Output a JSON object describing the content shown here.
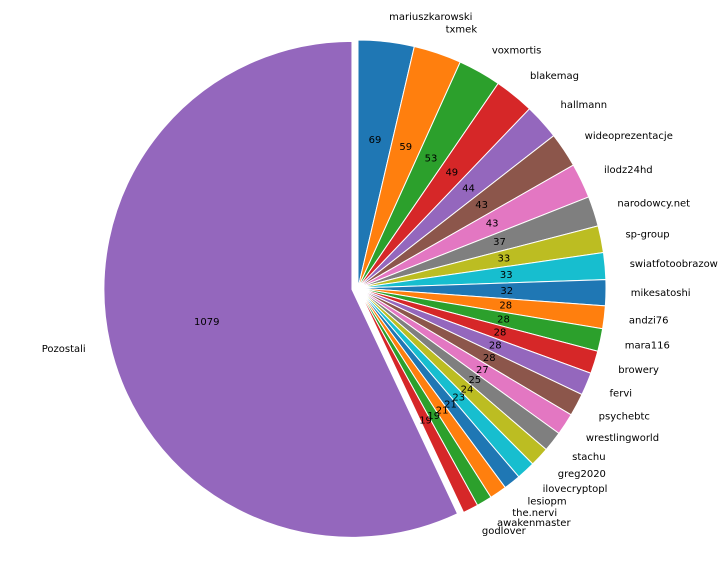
{
  "chart_data": {
    "type": "pie",
    "start_angle_deg": 90,
    "direction": "clockwise",
    "explode": 0.025,
    "title": "",
    "labels": [
      "mariuszkarowski",
      "txmek",
      "voxmortis",
      "blakemag",
      "hallmann",
      "wideoprezentacje",
      "ilodz24hd",
      "narodowcy.net",
      "sp-group",
      "swiatfotoobrazow",
      "mikesatoshi",
      "andzi76",
      "mara116",
      "browery",
      "fervi",
      "psychebtc",
      "wrestlingworld",
      "stachu",
      "greg2020",
      "ilovecryptopl",
      "lesiopm",
      "the.nervi",
      "awakenmaster",
      "godlover",
      "Pozostali"
    ],
    "values": [
      69,
      59,
      53,
      49,
      44,
      43,
      43,
      37,
      33,
      33,
      32,
      28,
      28,
      28,
      28,
      28,
      27,
      25,
      24,
      23,
      21,
      21,
      19,
      19,
      1079
    ],
    "colors": [
      "#1f77b4",
      "#ff7f0e",
      "#2ca02c",
      "#d62728",
      "#9467bd",
      "#8c564b",
      "#e377c2",
      "#7f7f7f",
      "#bcbd22",
      "#17becf",
      "#1f77b4",
      "#ff7f0e",
      "#2ca02c",
      "#d62728",
      "#9467bd",
      "#8c564b",
      "#e377c2",
      "#7f7f7f",
      "#bcbd22",
      "#17becf",
      "#1f77b4",
      "#ff7f0e",
      "#2ca02c",
      "#d62728",
      "#9467bd"
    ]
  }
}
